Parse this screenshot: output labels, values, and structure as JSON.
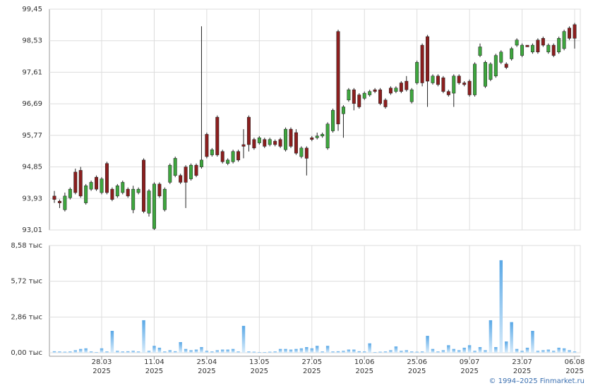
{
  "chart_data": {
    "type": "candlestick",
    "categories": [
      null,
      null,
      null,
      null,
      null,
      null,
      null,
      null,
      null,
      "28.03\n2025",
      null,
      null,
      null,
      null,
      null,
      null,
      null,
      null,
      null,
      "11.04\n2025",
      null,
      null,
      null,
      null,
      null,
      null,
      null,
      null,
      null,
      "25.04\n2025",
      null,
      null,
      null,
      null,
      null,
      null,
      null,
      null,
      null,
      "13.05\n2025",
      null,
      null,
      null,
      null,
      null,
      null,
      null,
      null,
      null,
      "27.05\n2025",
      null,
      null,
      null,
      null,
      null,
      null,
      null,
      null,
      null,
      "10.06\n2025",
      null,
      null,
      null,
      null,
      null,
      null,
      null,
      null,
      null,
      "25.06\n2025",
      null,
      null,
      null,
      null,
      null,
      null,
      null,
      null,
      null,
      "09.07\n2025",
      null,
      null,
      null,
      null,
      null,
      null,
      null,
      null,
      null,
      "23.07\n2025",
      null,
      null,
      null,
      null,
      null,
      null,
      null,
      null,
      null,
      "06.08\n2025"
    ],
    "ohlc": {
      "open": [
        94.0,
        93.85,
        93.6,
        93.95,
        94.7,
        94.75,
        93.8,
        94.2,
        94.55,
        94.1,
        94.95,
        94.2,
        94.0,
        94.1,
        94.2,
        93.6,
        94.1,
        95.05,
        93.5,
        93.05,
        94.35,
        93.6,
        94.4,
        94.6,
        94.6,
        94.85,
        94.5,
        94.9,
        94.85,
        95.8,
        95.2,
        96.3,
        95.3,
        94.95,
        95.0,
        95.3,
        95.5,
        96.3,
        95.65,
        95.55,
        95.65,
        95.5,
        95.6,
        95.65,
        95.35,
        95.95,
        95.85,
        95.15,
        95.4,
        95.7,
        95.7,
        95.75,
        95.4,
        95.9,
        98.8,
        96.4,
        96.8,
        97.1,
        96.95,
        96.85,
        96.95,
        97.1,
        97.1,
        96.8,
        97.15,
        97.05,
        97.3,
        97.35,
        96.75,
        97.3,
        98.4,
        98.65,
        97.3,
        97.5,
        97.45,
        97.05,
        97.0,
        97.5,
        97.3,
        97.35,
        96.95,
        98.1,
        97.2,
        97.4,
        97.5,
        97.9,
        97.85,
        98.0,
        98.4,
        98.1,
        98.4,
        98.2,
        98.55,
        98.6,
        98.2,
        98.4,
        98.2,
        98.3,
        98.9,
        99.0
      ],
      "high": [
        94.15,
        93.9,
        94.1,
        94.25,
        94.8,
        94.85,
        94.35,
        94.45,
        94.6,
        94.55,
        95.0,
        94.25,
        94.35,
        94.45,
        94.25,
        94.3,
        94.25,
        95.1,
        94.2,
        94.4,
        94.4,
        94.25,
        94.95,
        95.15,
        94.65,
        94.9,
        94.95,
        94.95,
        98.95,
        95.85,
        95.4,
        96.35,
        95.35,
        95.1,
        95.35,
        95.35,
        95.95,
        96.35,
        95.7,
        95.75,
        95.7,
        95.7,
        95.65,
        95.7,
        96.0,
        96.0,
        95.95,
        95.45,
        95.45,
        95.75,
        95.85,
        95.85,
        96.15,
        96.55,
        98.85,
        96.65,
        97.15,
        97.15,
        97.0,
        97.05,
        97.1,
        97.15,
        97.15,
        96.85,
        97.2,
        97.2,
        97.35,
        97.5,
        97.15,
        97.95,
        98.45,
        98.7,
        97.55,
        97.55,
        97.5,
        97.1,
        97.55,
        97.55,
        97.35,
        97.4,
        97.9,
        98.45,
        97.95,
        97.9,
        98.15,
        98.25,
        97.9,
        98.35,
        98.6,
        98.45,
        98.4,
        98.45,
        98.6,
        98.65,
        98.45,
        98.45,
        98.65,
        98.85,
        98.95,
        99.05
      ],
      "low": [
        93.8,
        93.65,
        93.55,
        93.9,
        94.05,
        93.95,
        93.75,
        94.15,
        94.15,
        94.05,
        94.05,
        93.85,
        93.95,
        94.05,
        93.95,
        93.5,
        94.05,
        93.5,
        93.4,
        93.01,
        93.95,
        93.55,
        94.35,
        94.55,
        94.35,
        93.65,
        94.45,
        94.55,
        94.8,
        95.1,
        95.15,
        95.15,
        94.95,
        94.9,
        94.95,
        95.0,
        95.1,
        95.3,
        95.35,
        95.5,
        95.4,
        95.45,
        95.45,
        95.4,
        95.3,
        95.4,
        95.2,
        95.1,
        94.6,
        95.6,
        95.65,
        95.7,
        95.35,
        95.85,
        95.9,
        95.7,
        96.75,
        96.5,
        96.55,
        96.8,
        96.9,
        97.0,
        96.65,
        96.55,
        96.95,
        97.0,
        97.0,
        97.05,
        96.7,
        97.25,
        97.2,
        96.6,
        97.25,
        97.2,
        97.0,
        96.9,
        96.6,
        97.25,
        97.2,
        96.9,
        96.9,
        98.05,
        97.15,
        97.35,
        97.45,
        97.85,
        97.7,
        97.95,
        98.35,
        98.05,
        98.35,
        98.15,
        98.15,
        98.35,
        98.15,
        98.05,
        98.15,
        98.25,
        98.55,
        98.3
      ],
      "close": [
        93.9,
        93.8,
        94.0,
        94.2,
        94.1,
        94.0,
        94.3,
        94.4,
        94.2,
        94.5,
        94.1,
        93.9,
        94.3,
        94.4,
        94.0,
        94.2,
        94.2,
        93.55,
        94.15,
        94.35,
        94.0,
        94.2,
        94.9,
        95.1,
        94.4,
        94.4,
        94.9,
        94.6,
        95.05,
        95.15,
        95.35,
        95.2,
        95.0,
        95.05,
        95.3,
        95.05,
        95.45,
        95.5,
        95.4,
        95.7,
        95.45,
        95.65,
        95.5,
        95.45,
        95.95,
        95.45,
        95.25,
        95.4,
        95.1,
        95.65,
        95.75,
        95.8,
        96.1,
        96.5,
        96.1,
        96.6,
        97.1,
        96.7,
        96.6,
        97.0,
        97.05,
        97.05,
        96.7,
        96.6,
        97.0,
        97.15,
        97.05,
        97.1,
        97.1,
        97.9,
        97.3,
        97.35,
        97.5,
        97.25,
        97.05,
        96.95,
        97.5,
        97.3,
        97.25,
        96.95,
        97.85,
        98.35,
        97.9,
        97.85,
        98.1,
        98.2,
        97.75,
        98.3,
        98.55,
        98.4,
        98.35,
        98.4,
        98.2,
        98.4,
        98.4,
        98.1,
        98.6,
        98.8,
        98.6,
        98.6
      ]
    },
    "up_color": "#3ea63e",
    "down_color": "#8b1e1e",
    "ylim": [
      93.01,
      99.45
    ],
    "yticks": [
      {
        "value": 93.01,
        "label": "93,01"
      },
      {
        "value": 93.93,
        "label": "93,93"
      },
      {
        "value": 94.85,
        "label": "94,85"
      },
      {
        "value": 95.77,
        "label": "95,77"
      },
      {
        "value": 96.69,
        "label": "96,69"
      },
      {
        "value": 97.61,
        "label": "97,61"
      },
      {
        "value": 98.53,
        "label": "98,53"
      },
      {
        "value": 99.45,
        "label": "99,45"
      }
    ],
    "volume": {
      "values": [
        0.12,
        0.1,
        0.08,
        0.1,
        0.2,
        0.3,
        0.35,
        0.1,
        0.05,
        0.35,
        0.1,
        1.75,
        0.15,
        0.1,
        0.12,
        0.15,
        0.1,
        2.6,
        0.15,
        0.55,
        0.4,
        0.1,
        0.2,
        0.12,
        0.85,
        0.3,
        0.2,
        0.25,
        0.45,
        0.15,
        0.1,
        0.2,
        0.25,
        0.25,
        0.3,
        0.1,
        2.15,
        0.1,
        0.08,
        0.05,
        0.05,
        0.08,
        0.1,
        0.3,
        0.3,
        0.25,
        0.3,
        0.35,
        0.45,
        0.35,
        0.55,
        0.1,
        0.55,
        0.1,
        0.12,
        0.15,
        0.25,
        0.25,
        0.12,
        0.1,
        0.75,
        0.05,
        0.08,
        0.1,
        0.2,
        0.5,
        0.15,
        0.2,
        0.1,
        0.08,
        0.1,
        1.35,
        0.3,
        0.1,
        0.2,
        0.6,
        0.3,
        0.2,
        0.4,
        0.6,
        0.15,
        0.45,
        0.2,
        2.6,
        0.45,
        7.4,
        0.9,
        2.45,
        0.3,
        0.15,
        0.4,
        1.75,
        0.15,
        0.2,
        0.25,
        0.15,
        0.4,
        0.35,
        0.2,
        0.1
      ],
      "ylim": [
        0,
        8.58
      ],
      "yticks": [
        {
          "value": 0,
          "label": "0,00 тыс"
        },
        {
          "value": 2.86,
          "label": "2,86 тыс"
        },
        {
          "value": 5.72,
          "label": "5,72 тыс"
        },
        {
          "value": 8.58,
          "label": "8,58 тыс"
        }
      ]
    },
    "grid": true,
    "credit": "© 1994–2025 Finmarket.ru"
  }
}
